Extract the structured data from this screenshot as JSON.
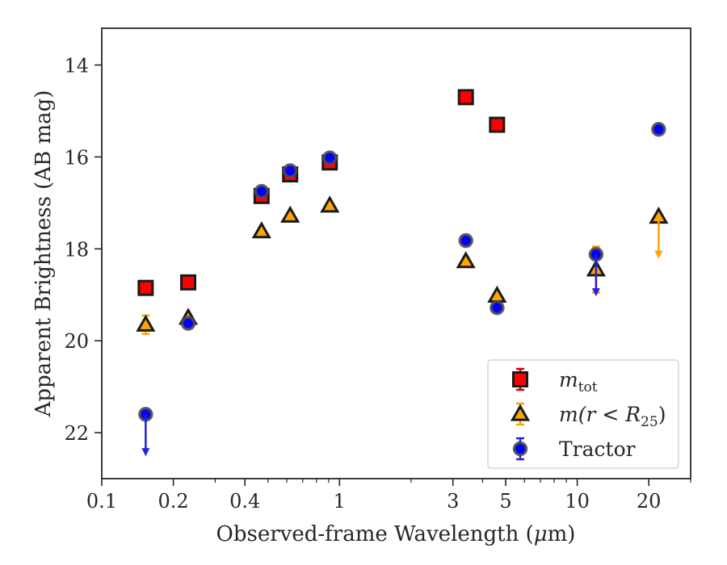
{
  "chart_data": {
    "type": "scatter",
    "xscale": "log",
    "xlim": [
      0.1,
      30
    ],
    "ylim": [
      23.0,
      13.2
    ],
    "y_inverted": true,
    "xlabel_main": "Observed-frame Wavelength (",
    "xlabel_mu": "μ",
    "xlabel_tail": "m)",
    "ylabel": "Apparent Brightness (AB mag)",
    "xticks": [
      {
        "value": 0.1,
        "label": "0.1"
      },
      {
        "value": 0.2,
        "label": "0.2"
      },
      {
        "value": 0.4,
        "label": "0.4"
      },
      {
        "value": 1,
        "label": "1"
      },
      {
        "value": 3,
        "label": "3"
      },
      {
        "value": 5,
        "label": "5"
      },
      {
        "value": 10,
        "label": "10"
      },
      {
        "value": 20,
        "label": "20"
      }
    ],
    "xminor_ticks": [
      0.3,
      0.5,
      0.6,
      0.7,
      0.8,
      0.9,
      2,
      4,
      6,
      7,
      8,
      9,
      30
    ],
    "yticks": [
      {
        "value": 14,
        "label": "14"
      },
      {
        "value": 16,
        "label": "16"
      },
      {
        "value": 18,
        "label": "18"
      },
      {
        "value": 20,
        "label": "20"
      },
      {
        "value": 22,
        "label": "22"
      }
    ],
    "grid": false,
    "legend_position": "lower-right",
    "series": [
      {
        "name_main": "m",
        "name_sub": "tot",
        "marker": "square",
        "fill": "#ff0000",
        "edge": "#1a1a1a",
        "errcolor": "#cc0000",
        "points": [
          {
            "x": 0.153,
            "y": 18.85,
            "err": 0.05
          },
          {
            "x": 0.231,
            "y": 18.73,
            "err": 0.05
          },
          {
            "x": 0.47,
            "y": 16.85,
            "err": 0.1
          },
          {
            "x": 0.62,
            "y": 16.38,
            "err": 0.1
          },
          {
            "x": 0.91,
            "y": 16.12,
            "err": 0.1
          },
          {
            "x": 3.4,
            "y": 14.7,
            "err": 0.05
          },
          {
            "x": 4.6,
            "y": 15.3,
            "err": 0.05
          }
        ]
      },
      {
        "name_main": "m(r < R",
        "name_sub": "25",
        "name_tail": ")",
        "marker": "triangle",
        "fill": "#ffa500",
        "edge": "#1a1a1a",
        "errcolor": "#ffa500",
        "points": [
          {
            "x": 0.153,
            "y": 19.65,
            "err": 0.2
          },
          {
            "x": 0.231,
            "y": 19.5,
            "err": 0.05
          },
          {
            "x": 0.47,
            "y": 17.62,
            "err": 0.05
          },
          {
            "x": 0.62,
            "y": 17.28,
            "err": 0.05
          },
          {
            "x": 0.91,
            "y": 17.06,
            "err": 0.05
          },
          {
            "x": 3.4,
            "y": 18.27,
            "err": 0.05
          },
          {
            "x": 4.6,
            "y": 19.02,
            "err": 0.05
          },
          {
            "x": 12.0,
            "y": 18.45,
            "err": 0.5
          },
          {
            "x": 22.0,
            "y": 17.3,
            "err": 0,
            "upper_limit": true
          }
        ]
      },
      {
        "name_main": "Tractor",
        "marker": "circle",
        "fill": "#0000ff",
        "edge": "#4d4d4d",
        "errcolor": "#2222dd",
        "points": [
          {
            "x": 0.153,
            "y": 21.6,
            "err": 0,
            "upper_limit": true
          },
          {
            "x": 0.231,
            "y": 19.62,
            "err": 0.05
          },
          {
            "x": 0.47,
            "y": 16.75,
            "err": 0.05
          },
          {
            "x": 0.62,
            "y": 16.3,
            "err": 0.05
          },
          {
            "x": 0.91,
            "y": 16.02,
            "err": 0.05
          },
          {
            "x": 3.4,
            "y": 17.82,
            "err": 0.05
          },
          {
            "x": 4.6,
            "y": 19.28,
            "err": 0.05
          },
          {
            "x": 12.0,
            "y": 18.12,
            "err": 0.1,
            "upper_limit": true
          },
          {
            "x": 22.0,
            "y": 15.4,
            "err": 0.05
          }
        ]
      }
    ]
  }
}
